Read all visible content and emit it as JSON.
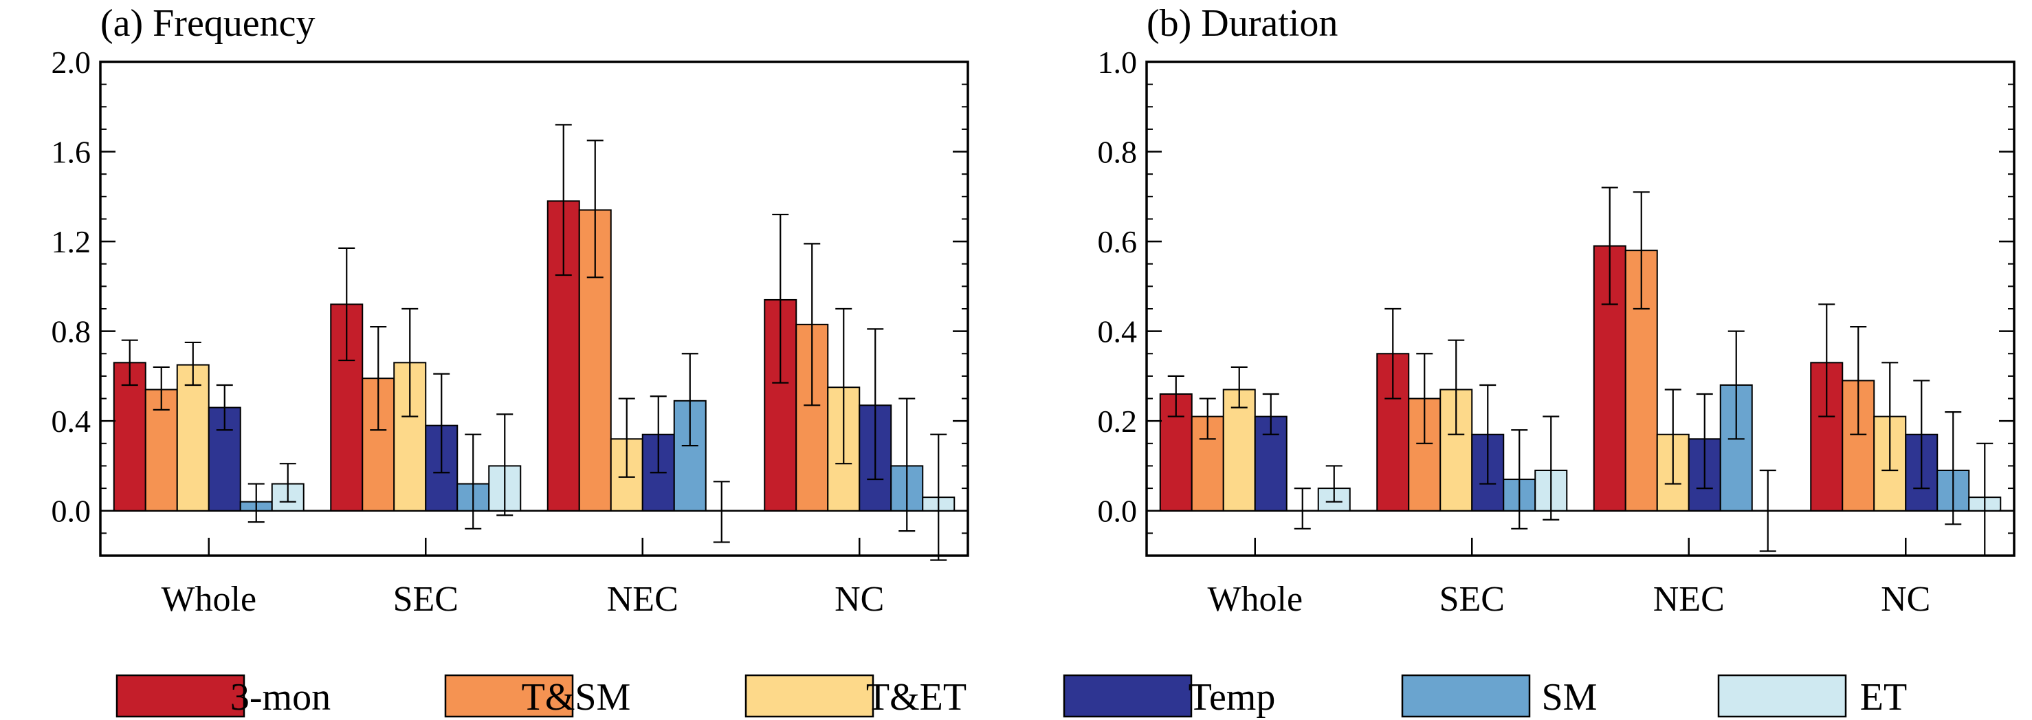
{
  "legend": {
    "items": [
      {
        "label": "3-mon",
        "color": "#c41e2a"
      },
      {
        "label": "T&SM",
        "color": "#f59352"
      },
      {
        "label": "T&ET",
        "color": "#fdd98a"
      },
      {
        "label": "Temp",
        "color": "#2e3592"
      },
      {
        "label": "SM",
        "color": "#6aa4cf"
      },
      {
        "label": "ET",
        "color": "#cfe9f1"
      }
    ]
  },
  "chart_data": [
    {
      "type": "bar",
      "title": "(a) Frequency",
      "categories": [
        "Whole",
        "SEC",
        "NEC",
        "NC"
      ],
      "ylim": [
        -0.2,
        2.0
      ],
      "yticks": [
        0.0,
        0.4,
        0.8,
        1.2,
        1.6,
        2.0
      ],
      "ytick_labels": [
        "0.0",
        "0.4",
        "0.8",
        "1.2",
        "1.6",
        "2.0"
      ],
      "series": [
        {
          "name": "3-mon",
          "values": [
            0.66,
            0.92,
            1.38,
            0.94
          ],
          "err_low": [
            0.56,
            0.67,
            1.05,
            0.57
          ],
          "err_high": [
            0.76,
            1.17,
            1.72,
            1.32
          ]
        },
        {
          "name": "T&SM",
          "values": [
            0.54,
            0.59,
            1.34,
            0.83
          ],
          "err_low": [
            0.45,
            0.36,
            1.04,
            0.47
          ],
          "err_high": [
            0.64,
            0.82,
            1.65,
            1.19
          ]
        },
        {
          "name": "T&ET",
          "values": [
            0.65,
            0.66,
            0.32,
            0.55
          ],
          "err_low": [
            0.56,
            0.42,
            0.15,
            0.21
          ],
          "err_high": [
            0.75,
            0.9,
            0.5,
            0.9
          ]
        },
        {
          "name": "Temp",
          "values": [
            0.46,
            0.38,
            0.34,
            0.47
          ],
          "err_low": [
            0.36,
            0.17,
            0.17,
            0.14
          ],
          "err_high": [
            0.56,
            0.61,
            0.51,
            0.81
          ]
        },
        {
          "name": "SM",
          "values": [
            0.04,
            0.12,
            0.49,
            0.2
          ],
          "err_low": [
            -0.05,
            -0.08,
            0.29,
            -0.09
          ],
          "err_high": [
            0.12,
            0.34,
            0.7,
            0.5
          ]
        },
        {
          "name": "ET",
          "values": [
            0.12,
            0.2,
            0.0,
            0.06
          ],
          "err_low": [
            0.04,
            -0.02,
            -0.14,
            -0.22
          ],
          "err_high": [
            0.21,
            0.43,
            0.13,
            0.34
          ]
        }
      ]
    },
    {
      "type": "bar",
      "title": "(b) Duration",
      "categories": [
        "Whole",
        "SEC",
        "NEC",
        "NC"
      ],
      "ylim": [
        -0.1,
        1.0
      ],
      "yticks": [
        0.0,
        0.2,
        0.4,
        0.6,
        0.8,
        1.0
      ],
      "ytick_labels": [
        "0.0",
        "0.2",
        "0.4",
        "0.6",
        "0.8",
        "1.0"
      ],
      "series": [
        {
          "name": "3-mon",
          "values": [
            0.26,
            0.35,
            0.59,
            0.33
          ],
          "err_low": [
            0.21,
            0.25,
            0.46,
            0.21
          ],
          "err_high": [
            0.3,
            0.45,
            0.72,
            0.46
          ]
        },
        {
          "name": "T&SM",
          "values": [
            0.21,
            0.25,
            0.58,
            0.29
          ],
          "err_low": [
            0.16,
            0.15,
            0.45,
            0.17
          ],
          "err_high": [
            0.25,
            0.35,
            0.71,
            0.41
          ]
        },
        {
          "name": "T&ET",
          "values": [
            0.27,
            0.27,
            0.17,
            0.21
          ],
          "err_low": [
            0.23,
            0.17,
            0.06,
            0.09
          ],
          "err_high": [
            0.32,
            0.38,
            0.27,
            0.33
          ]
        },
        {
          "name": "Temp",
          "values": [
            0.21,
            0.17,
            0.16,
            0.17
          ],
          "err_low": [
            0.17,
            0.06,
            0.05,
            0.05
          ],
          "err_high": [
            0.26,
            0.28,
            0.26,
            0.29
          ]
        },
        {
          "name": "SM",
          "values": [
            0.0,
            0.07,
            0.28,
            0.09
          ],
          "err_low": [
            -0.04,
            -0.04,
            0.16,
            -0.03
          ],
          "err_high": [
            0.05,
            0.18,
            0.4,
            0.22
          ]
        },
        {
          "name": "ET",
          "values": [
            0.05,
            0.09,
            0.0,
            0.03
          ],
          "err_low": [
            0.02,
            -0.02,
            -0.09,
            -0.1
          ],
          "err_high": [
            0.1,
            0.21,
            0.09,
            0.15
          ]
        }
      ]
    }
  ]
}
